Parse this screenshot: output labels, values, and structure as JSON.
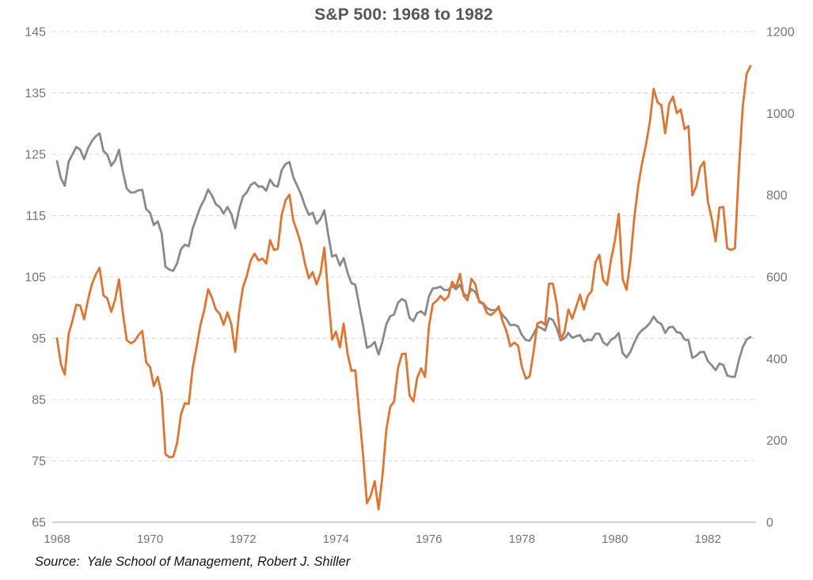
{
  "source": {
    "text": "Source:  Yale School of Management, Robert J. Shiller"
  },
  "colors": {
    "background": "#FFFFFF",
    "orange_line": "#DD7533",
    "gray_line": "#8A8A8A",
    "gridline": "#D8D8D8",
    "axis_line": "#C6C6C6",
    "title_text": "#565656",
    "axis_text": "#757575",
    "source_text": "#141414"
  },
  "chart_data": {
    "type": "line",
    "title": "S&P 500: 1968 to 1982",
    "grid": "horizontal-dashed",
    "legend": "none",
    "x": {
      "start_year": 1968,
      "end_year": 1982,
      "frequency": "monthly",
      "tick_labels": [
        "1968",
        "1970",
        "1972",
        "1974",
        "1976",
        "1978",
        "1980",
        "1982"
      ]
    },
    "left_axis": {
      "min": 65,
      "max": 145,
      "tick_step": 10,
      "tick_labels": [
        145,
        135,
        125,
        115,
        105,
        95,
        85,
        75,
        65
      ]
    },
    "right_axis": {
      "min": 0,
      "max": 1200,
      "tick_step": 200,
      "tick_labels": [
        1200,
        1000,
        800,
        600,
        400,
        200,
        0
      ]
    },
    "series": [
      {
        "id": "orange-line",
        "color": "#DD7533",
        "axis": "left",
        "values": [
          95.0,
          90.8,
          89.1,
          95.7,
          97.9,
          100.5,
          100.3,
          98.1,
          101.3,
          103.8,
          105.4,
          106.5,
          102.0,
          101.5,
          99.3,
          101.3,
          104.6,
          99.1,
          94.7,
          94.2,
          94.5,
          95.5,
          96.2,
          91.1,
          90.3,
          87.2,
          88.7,
          85.9,
          76.1,
          75.6,
          75.7,
          77.9,
          82.6,
          84.4,
          84.3,
          90.1,
          93.5,
          97.1,
          99.6,
          103.0,
          101.6,
          99.7,
          99.0,
          97.2,
          99.2,
          97.3,
          92.8,
          99.2,
          103.3,
          105.2,
          107.7,
          108.8,
          107.7,
          108.0,
          107.2,
          111.0,
          109.4,
          109.6,
          115.1,
          117.5,
          118.4,
          114.2,
          112.4,
          110.3,
          107.2,
          104.8,
          105.8,
          103.8,
          105.6,
          109.8,
          102.0,
          94.8,
          96.1,
          93.5,
          97.4,
          92.5,
          89.7,
          89.8,
          82.8,
          76.0,
          68.1,
          69.4,
          71.7,
          67.1,
          72.6,
          80.1,
          83.8,
          84.7,
          90.1,
          92.4,
          92.5,
          85.7,
          84.7,
          88.6,
          90.1,
          88.7,
          96.9,
          100.6,
          101.1,
          101.9,
          101.2,
          101.8,
          104.2,
          103.3,
          105.5,
          101.9,
          101.2,
          104.7,
          103.8,
          100.9,
          100.6,
          99.1,
          98.8,
          99.3,
          100.2,
          97.8,
          96.2,
          93.7,
          94.3,
          93.8,
          90.3,
          88.4,
          88.8,
          92.7,
          97.4,
          97.7,
          97.2,
          103.9,
          103.9,
          100.6,
          94.7,
          96.1,
          99.7,
          98.2,
          100.1,
          102.1,
          99.7,
          101.9,
          102.7,
          107.4,
          108.6,
          104.5,
          103.7,
          107.8,
          110.9,
          115.3,
          104.7,
          102.9,
          107.7,
          114.6,
          119.8,
          123.5,
          126.5,
          130.2,
          135.7,
          133.5,
          133.0,
          128.4,
          133.2,
          134.4,
          131.7,
          132.3,
          129.1,
          129.6,
          118.3,
          119.8,
          122.9,
          123.8,
          117.3,
          114.5,
          110.8,
          116.3,
          116.4,
          109.7,
          109.4,
          109.7,
          122.4,
          132.7,
          138.1,
          139.4
        ]
      },
      {
        "id": "gray-line",
        "color": "#8A8A8A",
        "axis": "right",
        "values": [
          883,
          842,
          823,
          882,
          900,
          918,
          911,
          888,
          915,
          932,
          944,
          951,
          908,
          899,
          872,
          885,
          911,
          858,
          816,
          807,
          807,
          812,
          813,
          766,
          757,
          727,
          736,
          707,
          625,
          618,
          615,
          633,
          668,
          679,
          675,
          718,
          745,
          771,
          789,
          814,
          799,
          778,
          771,
          755,
          771,
          754,
          719,
          765,
          797,
          807,
          825,
          831,
          821,
          821,
          811,
          838,
          824,
          821,
          861,
          876,
          881,
          844,
          823,
          802,
          774,
          752,
          757,
          730,
          741,
          763,
          704,
          650,
          654,
          628,
          646,
          611,
          585,
          581,
          531,
          482,
          427,
          431,
          441,
          410,
          442,
          484,
          504,
          508,
          537,
          546,
          541,
          500,
          492,
          512,
          516,
          507,
          552,
          572,
          573,
          576,
          568,
          568,
          578,
          570,
          581,
          558,
          553,
          570,
          563,
          541,
          536,
          524,
          519,
          519,
          521,
          507,
          497,
          482,
          483,
          479,
          458,
          446,
          444,
          460,
          479,
          475,
          469,
          499,
          495,
          475,
          445,
          450,
          463,
          451,
          455,
          458,
          442,
          447,
          445,
          461,
          461,
          440,
          433,
          446,
          452,
          463,
          414,
          403,
          417,
          439,
          459,
          470,
          477,
          487,
          503,
          490,
          485,
          463,
          477,
          478,
          465,
          463,
          447,
          445,
          402,
          407,
          416,
          417,
          394,
          384,
          372,
          388,
          385,
          359,
          356,
          356,
          396,
          428,
          447,
          453
        ]
      }
    ]
  }
}
